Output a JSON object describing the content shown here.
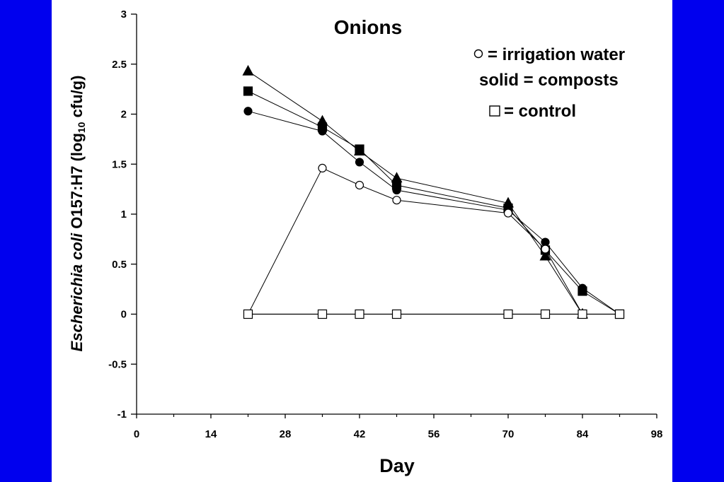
{
  "chart_data": {
    "type": "line",
    "title": "Onions",
    "xlabel": "Day",
    "ylabel_italic": "Escherichia coli",
    "ylabel_main": " O157:H7 (log",
    "ylabel_sub": "10",
    "ylabel_end": " cfu/g)",
    "xlim": [
      0,
      98
    ],
    "ylim": [
      -1,
      3
    ],
    "x_ticks": [
      0,
      14,
      28,
      42,
      56,
      70,
      84,
      98
    ],
    "y_ticks": [
      -1,
      -0.5,
      0,
      0.5,
      1,
      1.5,
      2,
      2.5,
      3
    ],
    "x_tick_labels": [
      "0",
      "14",
      "28",
      "42",
      "56",
      "70",
      "84",
      "98"
    ],
    "y_tick_labels": [
      "-1",
      "-0.5",
      "0",
      "0.5",
      "1",
      "1.5",
      "2",
      "2.5",
      "3"
    ],
    "grid": false,
    "legend_lines": [
      "= irrigation water",
      "solid = composts",
      "= control"
    ],
    "legend_placement": "top-right",
    "series": [
      {
        "marker": "triangle",
        "filled": true,
        "x": [
          21,
          35,
          42,
          49,
          70,
          77,
          84
        ],
        "y": [
          2.43,
          1.93,
          1.63,
          1.36,
          1.11,
          0.58,
          0.0
        ]
      },
      {
        "marker": "square",
        "filled": true,
        "x": [
          21,
          35,
          42,
          49,
          70,
          77,
          84,
          91
        ],
        "y": [
          2.23,
          1.87,
          1.65,
          1.29,
          1.06,
          0.64,
          0.23,
          0.0
        ]
      },
      {
        "marker": "circle",
        "filled": true,
        "x": [
          21,
          35,
          42,
          49,
          70,
          77,
          84,
          91
        ],
        "y": [
          2.03,
          1.83,
          1.52,
          1.24,
          1.04,
          0.72,
          0.26,
          0.0
        ]
      },
      {
        "marker": "circle",
        "filled": false,
        "x": [
          21,
          35,
          42,
          49,
          70,
          77,
          84,
          91
        ],
        "y": [
          0.0,
          1.46,
          1.29,
          1.14,
          1.01,
          0.65,
          0.0,
          0.0
        ]
      },
      {
        "marker": "square",
        "filled": false,
        "x": [
          21,
          35,
          42,
          49,
          70,
          77,
          84,
          91
        ],
        "y": [
          0,
          0,
          0,
          0,
          0,
          0,
          0,
          0
        ]
      }
    ]
  }
}
